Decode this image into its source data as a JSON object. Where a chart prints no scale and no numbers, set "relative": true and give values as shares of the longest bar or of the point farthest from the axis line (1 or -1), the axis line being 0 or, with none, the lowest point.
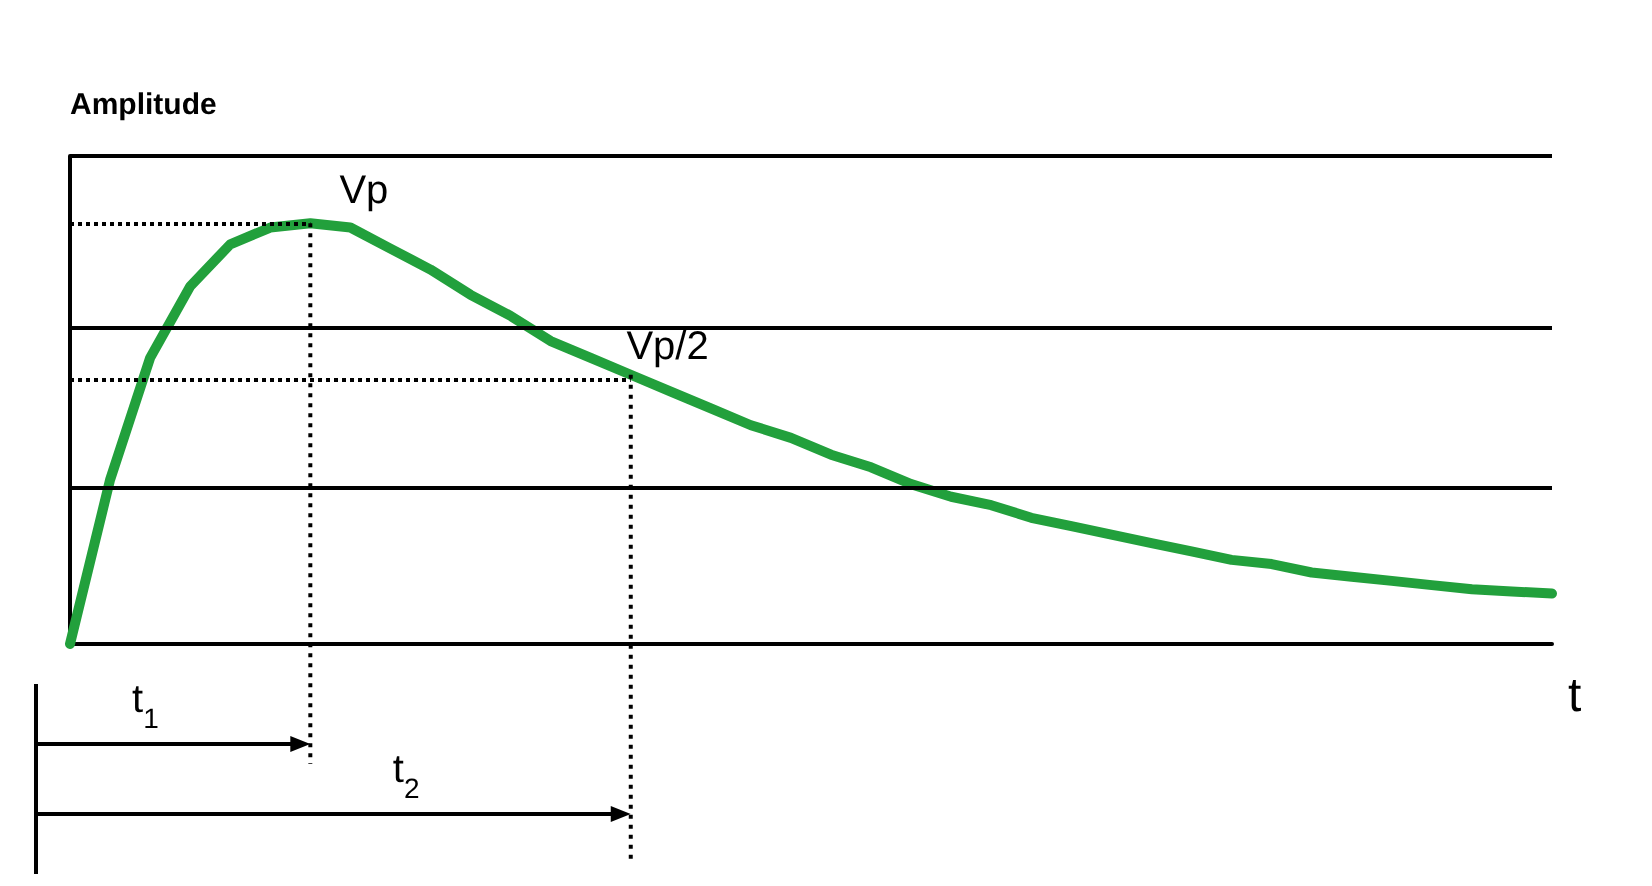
{
  "chart_data": {
    "type": "line",
    "relative": true,
    "xlabel": "t",
    "ylabel": "Amplitude",
    "categories": [
      null,
      null,
      null,
      null,
      null,
      null,
      null,
      null,
      null,
      null,
      null,
      null,
      null,
      null,
      null,
      null,
      null,
      null,
      null,
      null,
      null,
      null,
      null,
      null,
      null,
      null,
      null,
      null,
      null,
      null,
      null,
      null,
      null,
      null,
      null,
      null,
      null,
      null
    ],
    "series": [
      {
        "color": "#22a03c",
        "values": [
          0,
          0.39,
          0.68,
          0.85,
          0.95,
          0.99,
          1.0,
          0.99,
          0.94,
          0.89,
          0.83,
          0.78,
          0.72,
          0.68,
          0.64,
          0.6,
          0.56,
          0.52,
          0.49,
          0.45,
          0.42,
          0.38,
          0.35,
          0.33,
          0.3,
          0.28,
          0.26,
          0.24,
          0.22,
          0.2,
          0.19,
          0.17,
          0.16,
          0.15,
          0.14,
          0.13,
          0.125,
          0.12
        ]
      }
    ],
    "ref_lines": [
      {
        "axis": "y",
        "value": 1.0,
        "label": "Vp",
        "line_style": "dotted",
        "color": "#000000"
      },
      {
        "axis": "y",
        "value": 0.63,
        "label": "Vp/2",
        "line_style": "dotted",
        "color": "#000000"
      },
      {
        "axis": "y",
        "value": 0.37,
        "line_style": "solid",
        "color": "#000000"
      },
      {
        "axis": "y",
        "value": 0.75,
        "line_style": "solid",
        "color": "#000000"
      },
      {
        "axis": "y",
        "value": 1.16,
        "line_style": "solid",
        "color": "#000000"
      }
    ],
    "annotations": [
      "t$_{1}$",
      "t$_{2}$"
    ],
    "marker": "none",
    "line_style": "solid"
  }
}
